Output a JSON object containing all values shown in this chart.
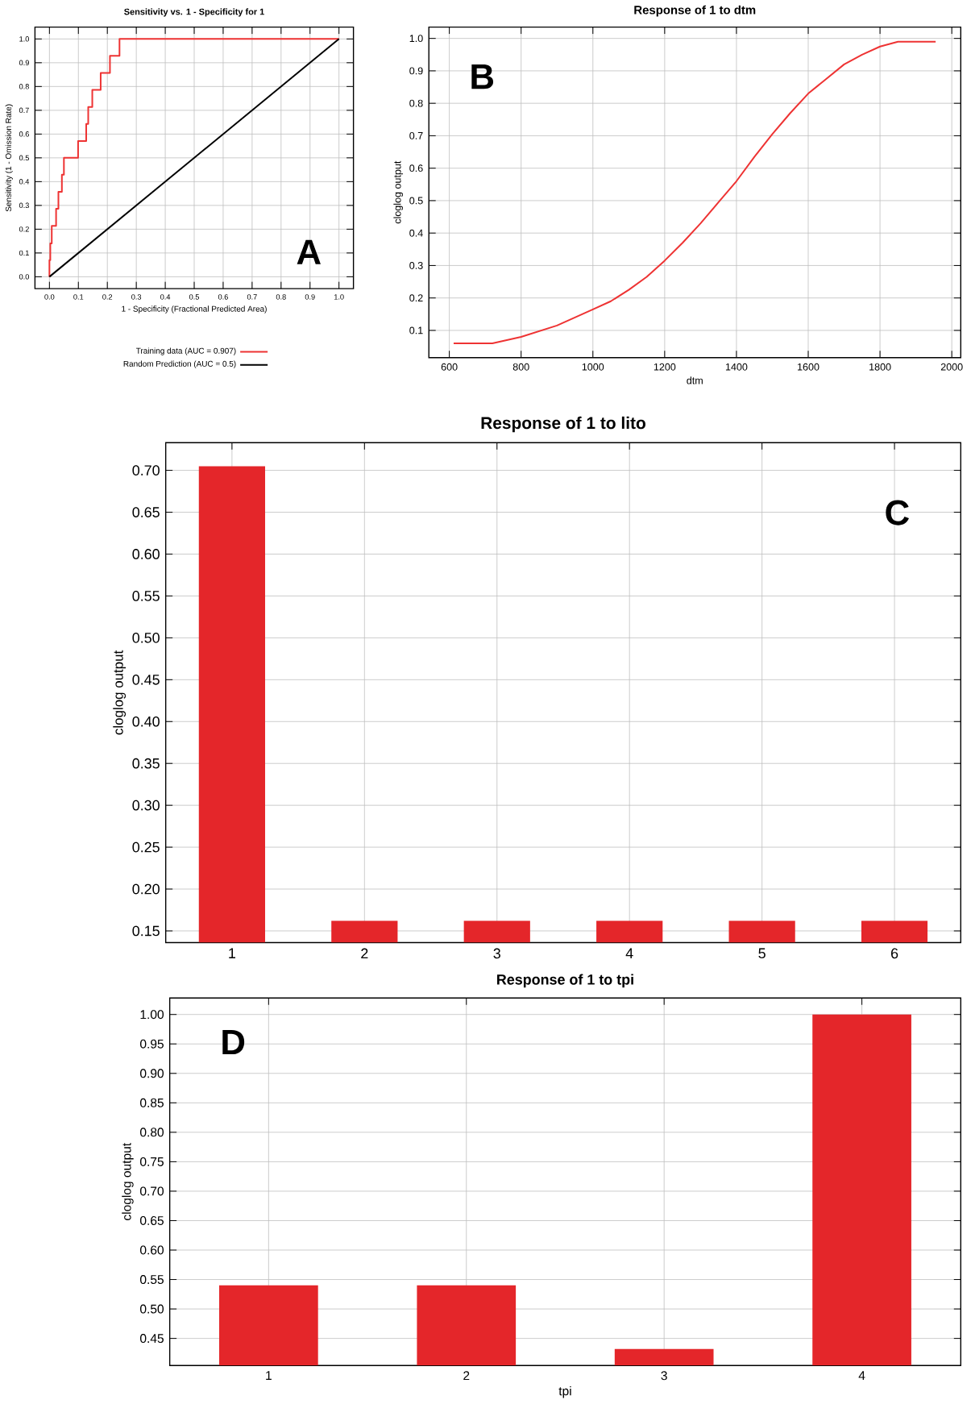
{
  "chart_data": [
    {
      "type": "line",
      "title": "Sensitivity vs. 1 - Specificity for 1",
      "xlabel": "1 - Specificity (Fractional Predicted Area)",
      "ylabel": "Sensitivity (1 - Omission Rate)",
      "xlim": [
        -0.05,
        1.05
      ],
      "ylim": [
        -0.05,
        1.05
      ],
      "xticks": [
        {
          "value": 0,
          "label": "0.0"
        },
        0.1,
        0.2,
        0.3,
        0.4,
        0.5,
        0.6,
        0.7,
        0.8,
        0.9,
        {
          "value": 1,
          "label": "1.0"
        }
      ],
      "yticks": [
        {
          "value": 0,
          "label": "0.0"
        },
        0.1,
        0.2,
        0.3,
        0.4,
        0.5,
        0.6,
        0.7,
        0.8,
        0.9,
        {
          "value": 1,
          "label": "1.0"
        }
      ],
      "grid": true,
      "legend": "bottom",
      "annotations": [
        "A"
      ],
      "series": [
        {
          "name": "Training data (AUC = 0.907)",
          "color": "#ee3333",
          "x": [
            0,
            0,
            0.003,
            0.003,
            0.008,
            0.008,
            0.023,
            0.023,
            0.031,
            0.031,
            0.043,
            0.043,
            0.05,
            0.05,
            0.099,
            0.099,
            0.127,
            0.127,
            0.134,
            0.134,
            0.148,
            0.148,
            0.177,
            0.177,
            0.209,
            0.209,
            0.242,
            0.242,
            1
          ],
          "values": [
            0,
            0.07,
            0.07,
            0.14,
            0.14,
            0.214,
            0.214,
            0.286,
            0.286,
            0.357,
            0.357,
            0.429,
            0.429,
            0.5,
            0.5,
            0.571,
            0.571,
            0.643,
            0.643,
            0.714,
            0.714,
            0.786,
            0.786,
            0.857,
            0.857,
            0.929,
            0.929,
            1,
            1
          ]
        },
        {
          "name": "Random Prediction (AUC = 0.5)",
          "color": "#000000",
          "x": [
            0,
            1
          ],
          "values": [
            0,
            1
          ]
        }
      ]
    },
    {
      "type": "line",
      "title": "Response of 1 to dtm",
      "xlabel": "dtm",
      "ylabel": "cloglog output",
      "xlim": [
        543,
        2025
      ],
      "ylim": [
        0.016,
        1.035
      ],
      "xticks": [
        600,
        800,
        1000,
        1200,
        1400,
        1600,
        1800,
        2000
      ],
      "yticks": [
        0.1,
        0.2,
        0.3,
        0.4,
        0.5,
        0.6,
        0.7,
        0.8,
        0.9,
        {
          "value": 1,
          "label": "1.0"
        }
      ],
      "grid": true,
      "annotations": [
        "B"
      ],
      "color": "#ee3333",
      "x": [
        612,
        720,
        800,
        900,
        1000,
        1050,
        1100,
        1150,
        1200,
        1250,
        1300,
        1350,
        1400,
        1450,
        1500,
        1550,
        1600,
        1650,
        1700,
        1750,
        1800,
        1850,
        1955
      ],
      "values": [
        0.06,
        0.06,
        0.08,
        0.115,
        0.165,
        0.19,
        0.225,
        0.265,
        0.315,
        0.37,
        0.43,
        0.495,
        0.56,
        0.635,
        0.705,
        0.77,
        0.83,
        0.875,
        0.92,
        0.95,
        0.975,
        0.99,
        0.99
      ]
    },
    {
      "type": "bar",
      "title": "Response of 1 to lito",
      "ylabel": "cloglog output",
      "categories": [
        "1",
        "2",
        "3",
        "4",
        "5",
        "6"
      ],
      "values": [
        0.705,
        0.162,
        0.162,
        0.162,
        0.162,
        0.162
      ],
      "color": "#e4262a",
      "ylim": [
        0.136,
        0.733
      ],
      "yticks": [
        {
          "value": 0.15,
          "label": "0.15"
        },
        {
          "value": 0.2,
          "label": "0.20"
        },
        {
          "value": 0.25,
          "label": "0.25"
        },
        {
          "value": 0.3,
          "label": "0.30"
        },
        {
          "value": 0.35,
          "label": "0.35"
        },
        {
          "value": 0.4,
          "label": "0.40"
        },
        {
          "value": 0.45,
          "label": "0.45"
        },
        {
          "value": 0.5,
          "label": "0.50"
        },
        {
          "value": 0.55,
          "label": "0.55"
        },
        {
          "value": 0.6,
          "label": "0.60"
        },
        {
          "value": 0.65,
          "label": "0.65"
        },
        {
          "value": 0.7,
          "label": "0.70"
        }
      ],
      "grid": true,
      "annotations": [
        "C"
      ]
    },
    {
      "type": "bar",
      "title": "Response of 1 to tpi",
      "xlabel": "tpi",
      "ylabel": "cloglog output",
      "categories": [
        "1",
        "2",
        "3",
        "4"
      ],
      "values": [
        0.54,
        0.54,
        0.432,
        1.0
      ],
      "color": "#e4262a",
      "ylim": [
        0.404,
        1.028
      ],
      "yticks": [
        {
          "value": 0.45,
          "label": "0.45"
        },
        {
          "value": 0.5,
          "label": "0.50"
        },
        {
          "value": 0.55,
          "label": "0.55"
        },
        {
          "value": 0.6,
          "label": "0.60"
        },
        {
          "value": 0.65,
          "label": "0.65"
        },
        {
          "value": 0.7,
          "label": "0.70"
        },
        {
          "value": 0.75,
          "label": "0.75"
        },
        {
          "value": 0.8,
          "label": "0.80"
        },
        {
          "value": 0.85,
          "label": "0.85"
        },
        {
          "value": 0.9,
          "label": "0.90"
        },
        {
          "value": 0.95,
          "label": "0.95"
        },
        {
          "value": 1.0,
          "label": "1.00"
        }
      ],
      "grid": true,
      "annotations": [
        "D"
      ]
    }
  ]
}
